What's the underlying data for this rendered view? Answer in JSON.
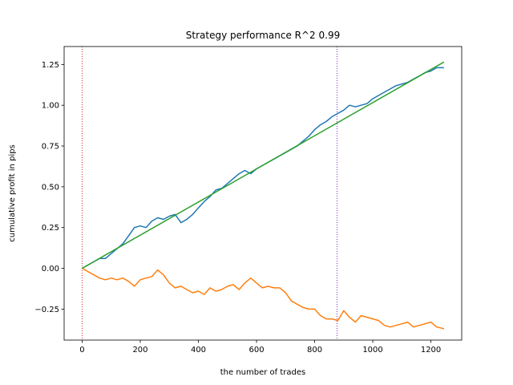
{
  "chart_data": {
    "type": "line",
    "title": "Strategy performance R^2 0.99",
    "xlabel": "the number of trades",
    "ylabel": "cumulative profit in pips",
    "xlim": [
      -62,
      1306
    ],
    "ylim": [
      -0.44,
      1.36
    ],
    "x_ticks": [
      0,
      200,
      400,
      600,
      800,
      1000,
      1200
    ],
    "x_tick_labels": [
      "0",
      "200",
      "400",
      "600",
      "800",
      "1000",
      "1200"
    ],
    "y_ticks": [
      -0.25,
      0.0,
      0.25,
      0.5,
      0.75,
      1.0,
      1.25
    ],
    "y_tick_labels": [
      "−0.25",
      "0.00",
      "0.25",
      "0.50",
      "0.75",
      "1.00",
      "1.25"
    ],
    "grid": false,
    "vlines": [
      {
        "x": 0,
        "color": "#d62728",
        "style": "dotted"
      },
      {
        "x": 877,
        "color": "#7b2fbf",
        "style": "dotted"
      }
    ],
    "series": [
      {
        "color": "#1f77b4",
        "x": [
          0,
          20,
          40,
          60,
          80,
          100,
          120,
          140,
          160,
          180,
          200,
          220,
          240,
          260,
          280,
          300,
          320,
          340,
          360,
          380,
          400,
          420,
          440,
          460,
          480,
          500,
          520,
          540,
          560,
          580,
          600,
          620,
          640,
          660,
          680,
          700,
          720,
          740,
          760,
          780,
          800,
          820,
          840,
          860,
          880,
          900,
          920,
          940,
          960,
          980,
          1000,
          1020,
          1040,
          1060,
          1080,
          1100,
          1120,
          1140,
          1160,
          1180,
          1200,
          1220,
          1245
        ],
        "y": [
          0.0,
          0.02,
          0.04,
          0.06,
          0.06,
          0.09,
          0.12,
          0.15,
          0.2,
          0.25,
          0.26,
          0.25,
          0.29,
          0.31,
          0.3,
          0.32,
          0.33,
          0.28,
          0.3,
          0.33,
          0.37,
          0.41,
          0.44,
          0.48,
          0.49,
          0.52,
          0.55,
          0.58,
          0.6,
          0.58,
          0.61,
          0.63,
          0.65,
          0.67,
          0.69,
          0.71,
          0.73,
          0.75,
          0.78,
          0.81,
          0.85,
          0.88,
          0.9,
          0.93,
          0.95,
          0.97,
          1.0,
          0.99,
          1.0,
          1.01,
          1.04,
          1.06,
          1.08,
          1.1,
          1.12,
          1.13,
          1.14,
          1.16,
          1.18,
          1.2,
          1.21,
          1.23,
          1.23
        ]
      },
      {
        "color": "#ff7f0e",
        "x": [
          0,
          20,
          40,
          60,
          80,
          100,
          120,
          140,
          160,
          180,
          200,
          220,
          240,
          260,
          280,
          300,
          320,
          340,
          360,
          380,
          400,
          420,
          440,
          460,
          480,
          500,
          520,
          540,
          560,
          580,
          600,
          620,
          640,
          660,
          680,
          700,
          720,
          740,
          760,
          780,
          800,
          820,
          840,
          860,
          880,
          900,
          920,
          940,
          960,
          980,
          1000,
          1020,
          1040,
          1060,
          1080,
          1100,
          1120,
          1140,
          1160,
          1180,
          1200,
          1220,
          1245
        ],
        "y": [
          0.0,
          -0.02,
          -0.04,
          -0.06,
          -0.07,
          -0.06,
          -0.07,
          -0.06,
          -0.08,
          -0.11,
          -0.07,
          -0.06,
          -0.05,
          -0.01,
          -0.04,
          -0.09,
          -0.12,
          -0.11,
          -0.13,
          -0.15,
          -0.14,
          -0.16,
          -0.12,
          -0.14,
          -0.13,
          -0.11,
          -0.1,
          -0.13,
          -0.09,
          -0.06,
          -0.09,
          -0.12,
          -0.11,
          -0.12,
          -0.12,
          -0.15,
          -0.2,
          -0.22,
          -0.24,
          -0.25,
          -0.25,
          -0.29,
          -0.31,
          -0.31,
          -0.32,
          -0.26,
          -0.3,
          -0.33,
          -0.29,
          -0.3,
          -0.31,
          -0.32,
          -0.35,
          -0.36,
          -0.35,
          -0.34,
          -0.33,
          -0.36,
          -0.35,
          -0.34,
          -0.33,
          -0.36,
          -0.37
        ]
      },
      {
        "color": "#2ca02c",
        "x": [
          0,
          1245
        ],
        "y": [
          0.0,
          1.265
        ]
      }
    ]
  }
}
